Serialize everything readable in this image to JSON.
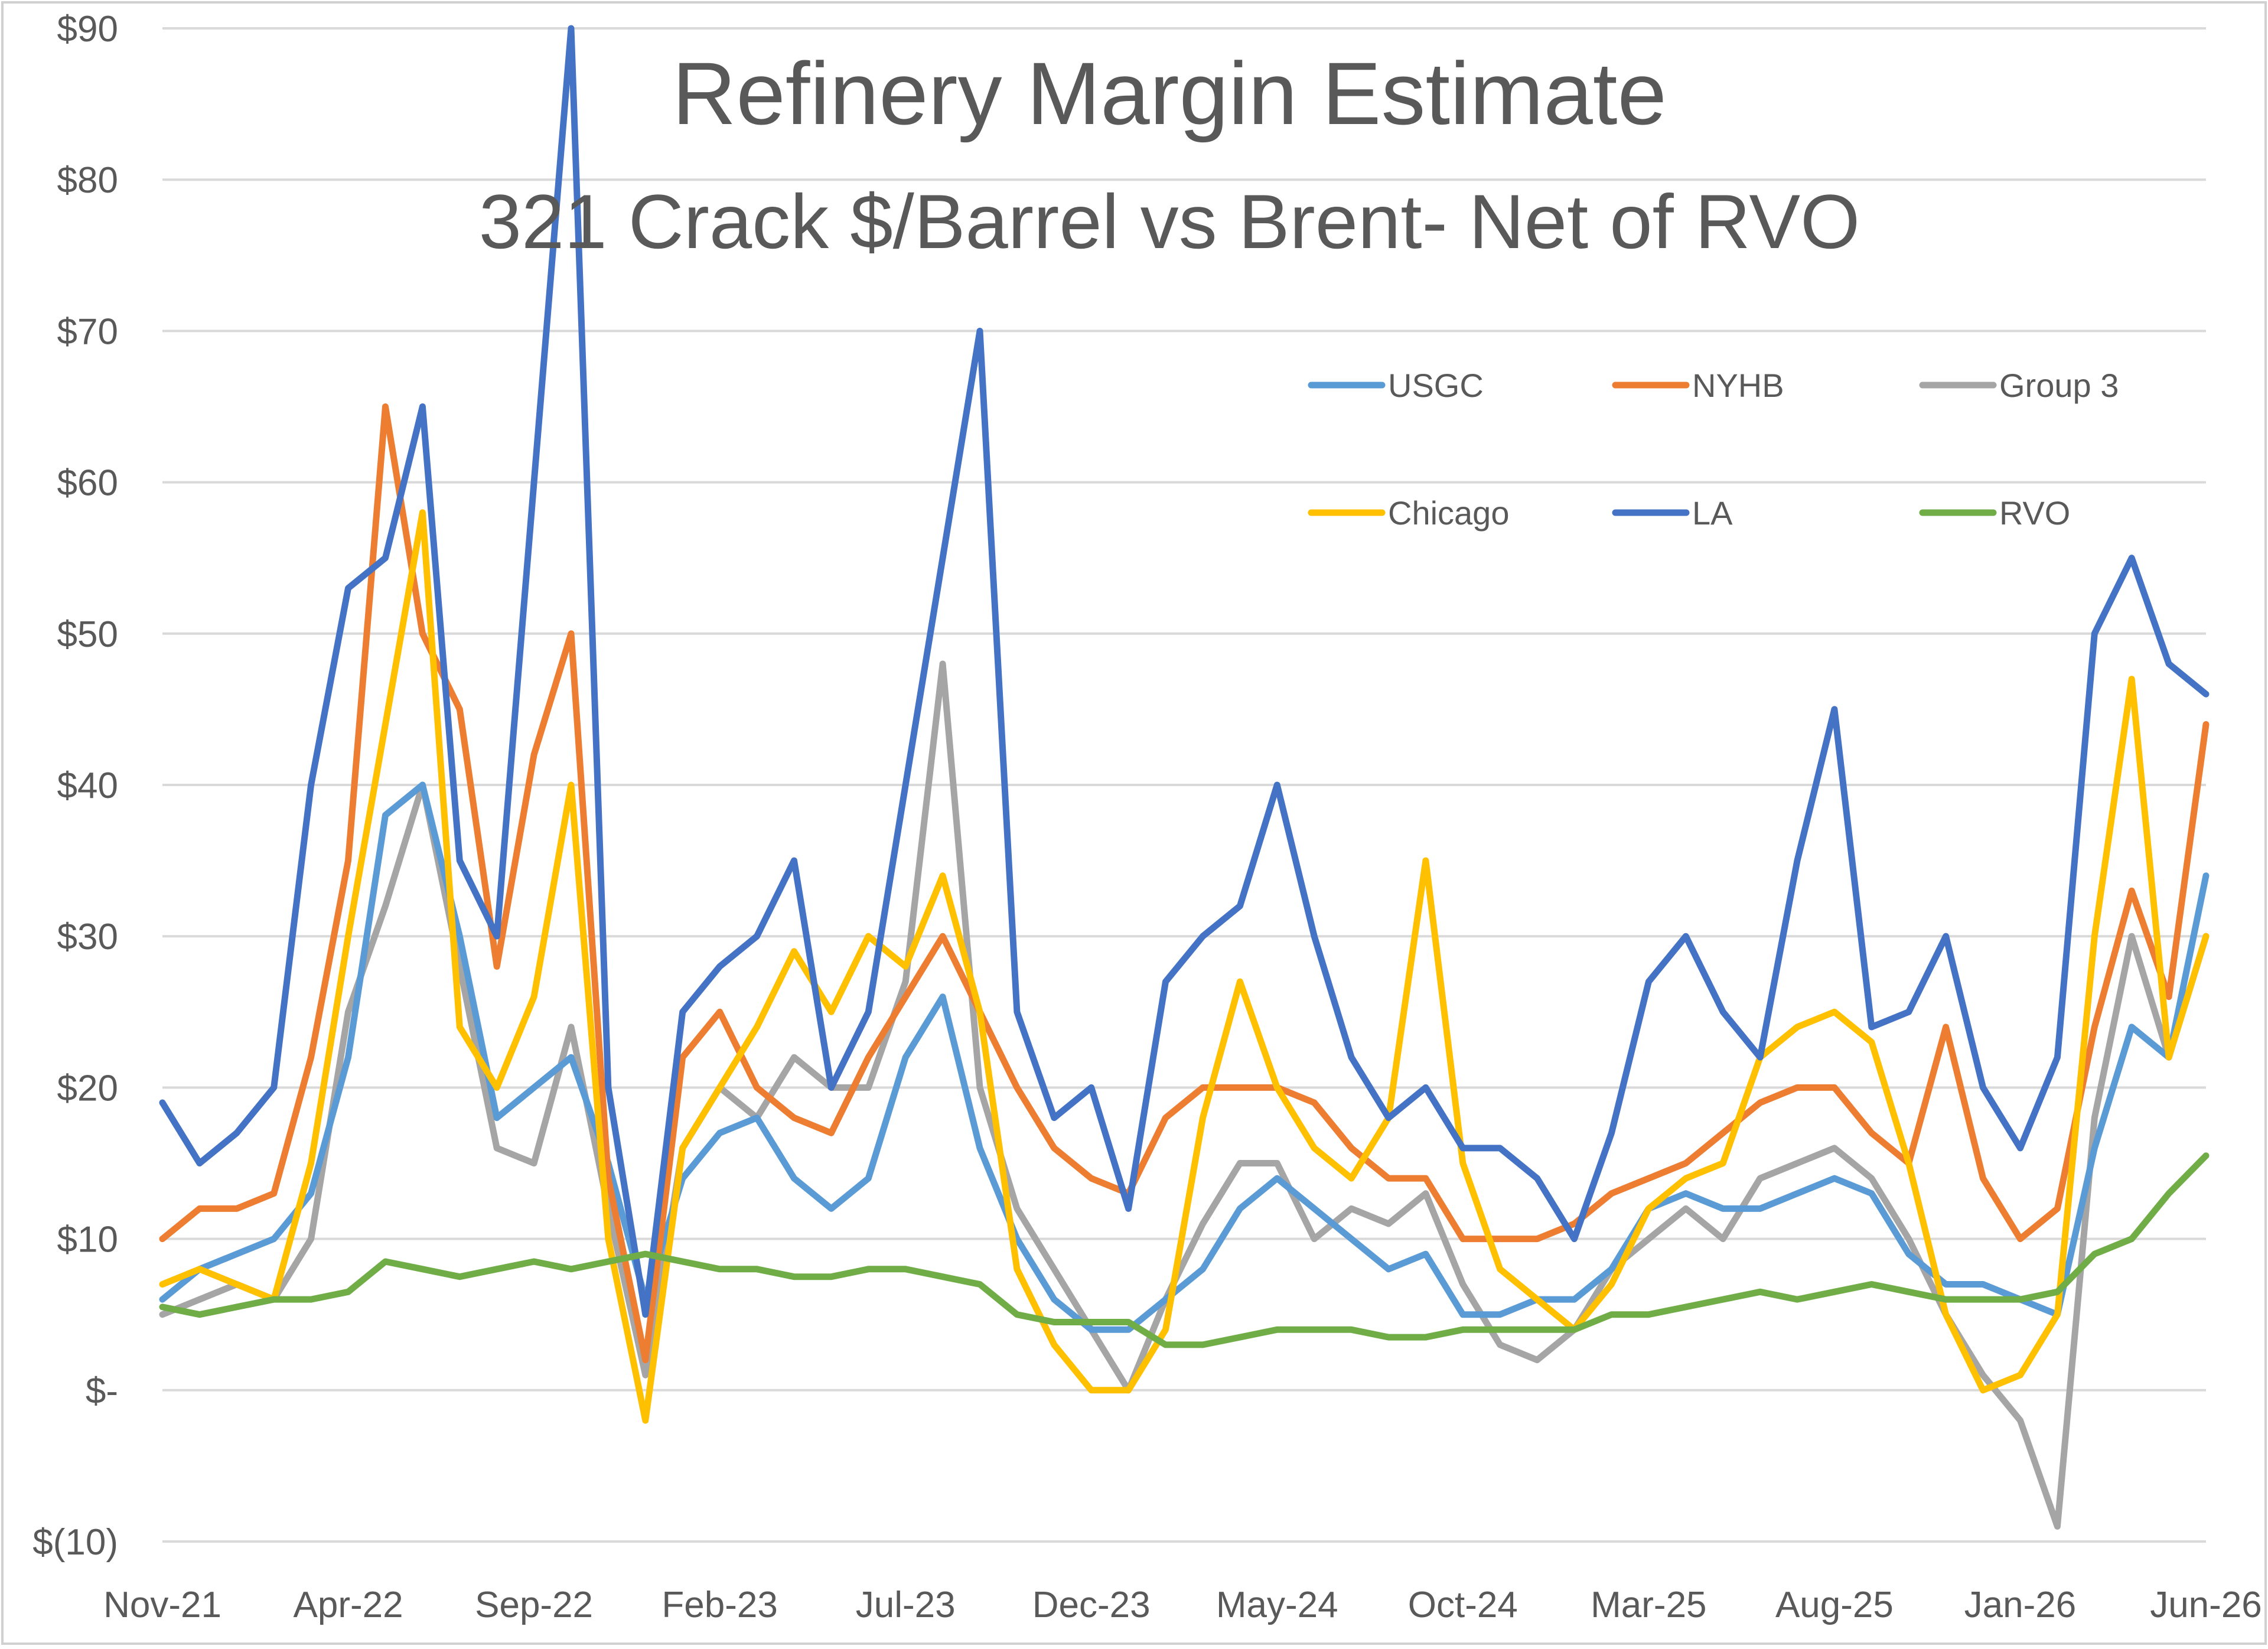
{
  "chart_data": {
    "type": "line",
    "title": "Refinery Margin Estimate",
    "subtitle": "321 Crack $/Barrel vs Brent- Net of RVO",
    "xlabel": "",
    "ylabel": "",
    "x_tick_labels": [
      "Nov-21",
      "Apr-22",
      "Sep-22",
      "Feb-23",
      "Jul-23",
      "Dec-23",
      "May-24",
      "Oct-24",
      "Mar-25",
      "Aug-25",
      "Jan-26",
      "Jun-26"
    ],
    "y_tick_labels": [
      "$(10)",
      "$-",
      "$10",
      "$20",
      "$30",
      "$40",
      "$50",
      "$60",
      "$70",
      "$80",
      "$90"
    ],
    "ylim": [
      -10,
      90
    ],
    "y_ticks": [
      -10,
      0,
      10,
      20,
      30,
      40,
      50,
      60,
      70,
      80,
      90
    ],
    "grid": true,
    "legend_position": "top-right",
    "x_dates": [
      "2021-11",
      "2021-12",
      "2022-01",
      "2022-02",
      "2022-03",
      "2022-04",
      "2022-05",
      "2022-06",
      "2022-07",
      "2022-08",
      "2022-09",
      "2022-10",
      "2022-11",
      "2022-12",
      "2023-01",
      "2023-02",
      "2023-03",
      "2023-04",
      "2023-05",
      "2023-06",
      "2023-07",
      "2023-08",
      "2023-09",
      "2023-10",
      "2023-11",
      "2023-12",
      "2024-01",
      "2024-02",
      "2024-03",
      "2024-04",
      "2024-05",
      "2024-06",
      "2024-07",
      "2024-08",
      "2024-09",
      "2024-10",
      "2024-11",
      "2024-12",
      "2025-01",
      "2025-02",
      "2025-03",
      "2025-04",
      "2025-05",
      "2025-06",
      "2025-07",
      "2025-08",
      "2025-09",
      "2025-10",
      "2025-11",
      "2025-12",
      "2026-01",
      "2026-02",
      "2026-03",
      "2026-04",
      "2026-05",
      "2026-06"
    ],
    "series": [
      {
        "name": "USGC",
        "color": "#5B9BD5",
        "values": [
          6,
          8,
          9,
          10,
          13,
          22,
          38,
          40,
          30,
          18,
          20,
          22,
          15,
          6,
          14,
          17,
          18,
          14,
          12,
          14,
          22,
          26,
          16,
          10,
          6,
          4,
          4,
          6,
          8,
          12,
          14,
          12,
          10,
          8,
          9,
          5,
          5,
          6,
          6,
          8,
          12,
          13,
          12,
          12,
          13,
          14,
          13,
          9,
          7,
          7,
          6,
          5,
          16,
          24,
          22,
          34
        ]
      },
      {
        "name": "NYHB",
        "color": "#ED7D31",
        "values": [
          10,
          12,
          12,
          13,
          22,
          35,
          65,
          50,
          45,
          28,
          42,
          50,
          14,
          2,
          22,
          25,
          20,
          18,
          17,
          22,
          26,
          30,
          25,
          20,
          16,
          14,
          13,
          18,
          20,
          20,
          20,
          19,
          16,
          14,
          14,
          10,
          10,
          10,
          11,
          13,
          14,
          15,
          17,
          19,
          20,
          20,
          17,
          15,
          24,
          14,
          10,
          12,
          24,
          33,
          26,
          44
        ]
      },
      {
        "name": "Group 3",
        "color": "#A5A5A5",
        "values": [
          5,
          6,
          7,
          6,
          10,
          25,
          32,
          40,
          28,
          16,
          15,
          24,
          12,
          1,
          16,
          20,
          18,
          22,
          20,
          20,
          27,
          48,
          20,
          12,
          8,
          4,
          0,
          6,
          11,
          15,
          15,
          10,
          12,
          11,
          13,
          7,
          3,
          2,
          4,
          8,
          10,
          12,
          10,
          14,
          15,
          16,
          14,
          10,
          5,
          1,
          -2,
          -9,
          18,
          30,
          22,
          30
        ]
      },
      {
        "name": "Chicago",
        "color": "#FFC000",
        "values": [
          7,
          8,
          7,
          6,
          15,
          30,
          44,
          58,
          24,
          20,
          26,
          40,
          10,
          -2,
          16,
          20,
          24,
          29,
          25,
          30,
          28,
          34,
          25,
          8,
          3,
          0,
          0,
          4,
          18,
          27,
          20,
          16,
          14,
          18,
          35,
          15,
          8,
          6,
          4,
          7,
          12,
          14,
          15,
          22,
          24,
          25,
          23,
          15,
          5,
          0,
          1,
          5,
          30,
          47,
          22,
          30
        ]
      },
      {
        "name": "LA",
        "color": "#4472C4",
        "values": [
          19,
          15,
          17,
          20,
          40,
          53,
          55,
          65,
          35,
          30,
          60,
          91,
          20,
          5,
          25,
          28,
          30,
          35,
          20,
          25,
          40,
          55,
          70,
          25,
          18,
          20,
          12,
          27,
          30,
          32,
          40,
          30,
          22,
          18,
          20,
          16,
          16,
          14,
          10,
          17,
          27,
          30,
          25,
          22,
          35,
          45,
          24,
          25,
          30,
          20,
          16,
          22,
          50,
          55,
          48,
          46
        ]
      },
      {
        "name": "RVO",
        "color": "#70AD47",
        "values": [
          5.5,
          5,
          5.5,
          6,
          6,
          6.5,
          8.5,
          8,
          7.5,
          8,
          8.5,
          8,
          8.5,
          9,
          8.5,
          8,
          8,
          7.5,
          7.5,
          8,
          8,
          7.5,
          7,
          5,
          4.5,
          4.5,
          4.5,
          3,
          3,
          3.5,
          4,
          4,
          4,
          3.5,
          3.5,
          4,
          4,
          4,
          4,
          5,
          5,
          5.5,
          6,
          6.5,
          6,
          6.5,
          7,
          6.5,
          6,
          6,
          6,
          6.5,
          9,
          10,
          13,
          15.5
        ]
      }
    ]
  },
  "legend": {
    "items": [
      {
        "label": "USGC",
        "color": "#5B9BD5"
      },
      {
        "label": "NYHB",
        "color": "#ED7D31"
      },
      {
        "label": "Group 3",
        "color": "#A5A5A5"
      },
      {
        "label": "Chicago",
        "color": "#FFC000"
      },
      {
        "label": "LA",
        "color": "#4472C4"
      },
      {
        "label": "RVO",
        "color": "#70AD47"
      }
    ]
  }
}
